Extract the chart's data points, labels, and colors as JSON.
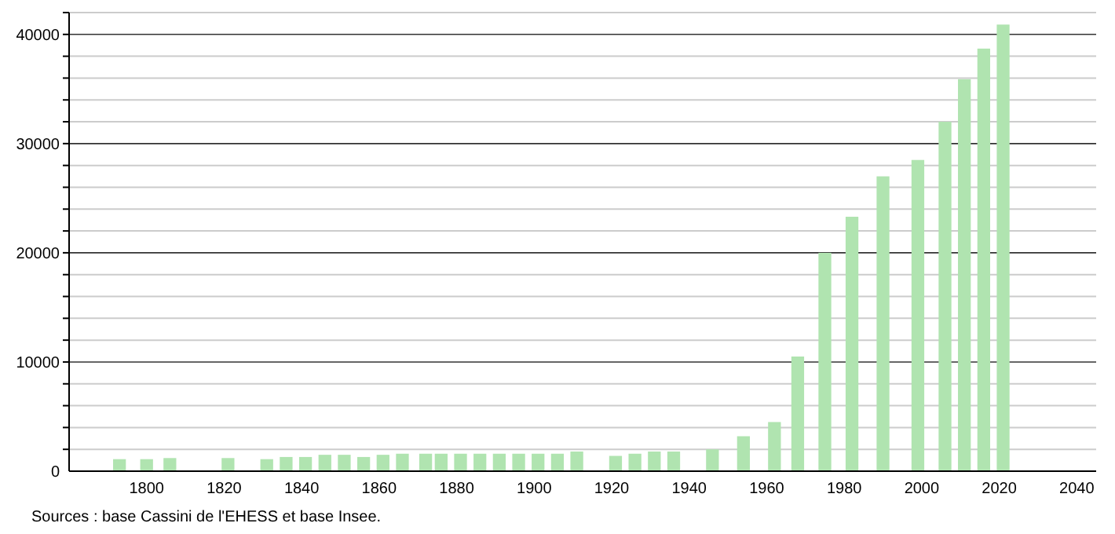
{
  "chart_data": {
    "type": "bar",
    "x": [
      1793,
      1800,
      1806,
      1821,
      1831,
      1836,
      1841,
      1846,
      1851,
      1856,
      1861,
      1866,
      1872,
      1876,
      1881,
      1886,
      1891,
      1896,
      1901,
      1906,
      1911,
      1921,
      1926,
      1931,
      1936,
      1946,
      1954,
      1962,
      1968,
      1975,
      1982,
      1990,
      1999,
      2006,
      2011,
      2016,
      2021
    ],
    "values": [
      1100,
      1100,
      1200,
      1200,
      1100,
      1300,
      1300,
      1500,
      1500,
      1300,
      1500,
      1600,
      1600,
      1600,
      1600,
      1600,
      1600,
      1600,
      1600,
      1600,
      1800,
      1400,
      1600,
      1800,
      1800,
      2000,
      3200,
      4500,
      10500,
      20000,
      23300,
      27000,
      28500,
      32000,
      35900,
      38700,
      40900
    ],
    "color": "#b0e4b0",
    "xlim": [
      1780,
      2045
    ],
    "xticks": [
      1800,
      1820,
      1840,
      1860,
      1880,
      1900,
      1920,
      1940,
      1960,
      1980,
      2000,
      2020,
      2040
    ],
    "ylim": [
      0,
      42000
    ],
    "yticks": [
      0,
      {
        "value": 2000,
        "label": null
      },
      {
        "value": 4000,
        "label": null
      },
      {
        "value": 6000,
        "label": null
      },
      {
        "value": 8000,
        "label": null
      },
      10000,
      {
        "value": 12000,
        "label": null
      },
      {
        "value": 14000,
        "label": null
      },
      {
        "value": 16000,
        "label": null
      },
      {
        "value": 18000,
        "label": null
      },
      20000,
      {
        "value": 22000,
        "label": null
      },
      {
        "value": 24000,
        "label": null
      },
      {
        "value": 26000,
        "label": null
      },
      {
        "value": 28000,
        "label": null
      },
      30000,
      {
        "value": 32000,
        "label": null
      },
      {
        "value": 34000,
        "label": null
      },
      {
        "value": 36000,
        "label": null
      },
      {
        "value": 38000,
        "label": null
      },
      40000,
      {
        "value": 42000,
        "label": null
      }
    ],
    "grid": "y",
    "annotations": [
      "Sources : base Cassini de l'EHESS et base Insee."
    ]
  }
}
